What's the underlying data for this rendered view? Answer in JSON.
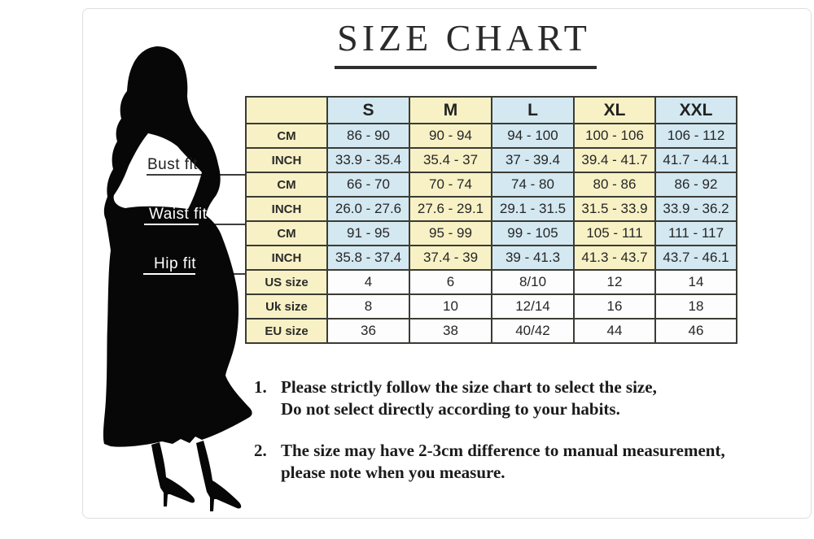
{
  "title": {
    "text": "SIZE CHART"
  },
  "measure_labels": {
    "bust": "Bust fit",
    "waist": "Waist fit",
    "hip": "Hip fit"
  },
  "table": {
    "corner_label": "",
    "size_headers": [
      "S",
      "M",
      "L",
      "XL",
      "XXL"
    ],
    "rows": [
      {
        "label": "CM",
        "values": [
          "86 - 90",
          "90 - 94",
          "94 - 100",
          "100 - 106",
          "106 - 112"
        ]
      },
      {
        "label": "INCH",
        "values": [
          "33.9 - 35.4",
          "35.4 - 37",
          "37 - 39.4",
          "39.4 - 41.7",
          "41.7 - 44.1"
        ]
      },
      {
        "label": "CM",
        "values": [
          "66 - 70",
          "70 - 74",
          "74 - 80",
          "80 - 86",
          "86 - 92"
        ]
      },
      {
        "label": "INCH",
        "values": [
          "26.0 - 27.6",
          "27.6 - 29.1",
          "29.1 - 31.5",
          "31.5 - 33.9",
          "33.9 - 36.2"
        ]
      },
      {
        "label": "CM",
        "values": [
          "91 - 95",
          "95 - 99",
          "99 - 105",
          "105 - 111",
          "111 - 117"
        ]
      },
      {
        "label": "INCH",
        "values": [
          "35.8 - 37.4",
          "37.4 - 39",
          "39 - 41.3",
          "41.3 - 43.7",
          "43.7 - 46.1"
        ]
      },
      {
        "label": "US size",
        "values": [
          "4",
          "6",
          "8/10",
          "12",
          "14"
        ]
      },
      {
        "label": "Uk size",
        "values": [
          "8",
          "10",
          "12/14",
          "16",
          "18"
        ]
      },
      {
        "label": "EU size",
        "values": [
          "36",
          "38",
          "40/42",
          "44",
          "46"
        ]
      }
    ]
  },
  "notes": [
    {
      "num": "1.",
      "lines": [
        "Please strictly follow the size chart to select the size,",
        "Do not select directly according to your habits."
      ]
    },
    {
      "num": "2.",
      "lines": [
        "The size may have 2-3cm difference  to manual measurement,",
        "please note when you measure."
      ]
    }
  ],
  "colors": {
    "cell_yellow": "#f7f1c5",
    "cell_blue": "#d3e8f1",
    "cell_white": "#fdfdfe",
    "table_border": "#3b3b35",
    "silhouette": "#070707",
    "connector_line": "#3e3e3e",
    "frame": "#dfdedb"
  }
}
